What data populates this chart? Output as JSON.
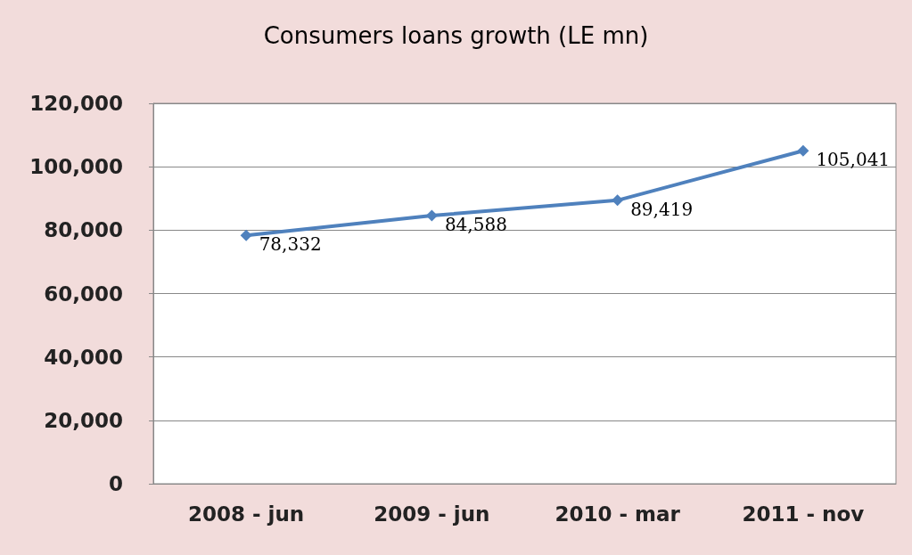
{
  "chart_data": {
    "type": "line",
    "title": "Consumers loans growth (LE mn)",
    "categories": [
      "2008 - jun",
      "2009 - jun",
      "2010 - mar",
      "2011 - nov"
    ],
    "series": [
      {
        "color": "#4f81bd",
        "values": [
          78332,
          84588,
          89419,
          105041
        ],
        "value_labels": [
          "78,332",
          "84,588",
          "89,419",
          "105,041"
        ]
      }
    ],
    "ylim": [
      0,
      120000
    ],
    "yticks": [
      0,
      {
        "value": 20000,
        "label": "20,000"
      },
      {
        "value": 40000,
        "label": "40,000"
      },
      {
        "value": 60000,
        "label": "60,000"
      },
      {
        "value": 80000,
        "label": "80,000"
      },
      {
        "value": 100000,
        "label": "100,000"
      },
      {
        "value": 120000,
        "label": "120,000"
      }
    ],
    "grid": "y",
    "marker": "diamond",
    "line_style": "solid"
  }
}
